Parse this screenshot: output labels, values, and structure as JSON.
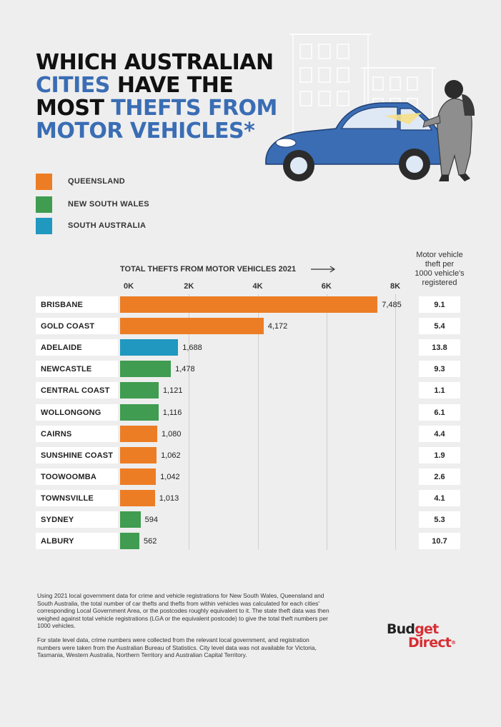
{
  "title": {
    "line1": "WHICH AUSTRALIAN",
    "line2_highlight": "CITIES",
    "line2_rest": " HAVE THE",
    "line3_dark": "MOST ",
    "line3_highlight": "THEFTS FROM",
    "line4": "MOTOR VEHICLES*"
  },
  "legend": [
    {
      "label": "QUEENSLAND",
      "color": "#ed7d24"
    },
    {
      "label": "NEW SOUTH WALES",
      "color": "#3f9c50"
    },
    {
      "label": "SOUTH AUSTRALIA",
      "color": "#2098c0"
    }
  ],
  "colors": {
    "QLD": "#ed7d24",
    "NSW": "#3f9c50",
    "SA": "#2098c0",
    "title_blue": "#3a6db4",
    "brand_red": "#d62e34"
  },
  "rate_header": [
    "Motor vehicle",
    "theft per",
    "1000 vehicle's",
    "registered"
  ],
  "chart_data": {
    "type": "bar",
    "orientation": "horizontal",
    "xlabel": "TOTAL THEFTS FROM MOTOR VEHICLES 2021",
    "ticks": [
      "0K",
      "2K",
      "4K",
      "6K",
      "8K"
    ],
    "tick_values": [
      0,
      2000,
      4000,
      6000,
      8000
    ],
    "xlim": [
      0,
      8000
    ],
    "grid": true,
    "categories": [
      "BRISBANE",
      "GOLD COAST",
      "ADELAIDE",
      "NEWCASTLE",
      "CENTRAL COAST",
      "WOLLONGONG",
      "CAIRNS",
      "SUNSHINE COAST",
      "TOOWOOMBA",
      "TOWNSVILLE",
      "SYDNEY",
      "ALBURY"
    ],
    "values": [
      7485,
      4172,
      1688,
      1478,
      1121,
      1116,
      1080,
      1062,
      1042,
      1013,
      594,
      562
    ],
    "value_labels": [
      "7,485",
      "4,172",
      "1,688",
      "1,478",
      "1,121",
      "1,116",
      "1,080",
      "1,062",
      "1,042",
      "1,013",
      "594",
      "562"
    ],
    "states": [
      "QLD",
      "QLD",
      "SA",
      "NSW",
      "NSW",
      "NSW",
      "QLD",
      "QLD",
      "QLD",
      "QLD",
      "NSW",
      "NSW"
    ],
    "rate_per_1000": [
      "9.1",
      "5.4",
      "13.8",
      "9.3",
      "1.1",
      "6.1",
      "4.4",
      "1.9",
      "2.6",
      "4.1",
      "5.3",
      "10.7"
    ]
  },
  "footnote": [
    "Using 2021 local government data for crime and vehicle registrations for New South Wales, Queensland and South Australia, the total number of car thefts and thefts from within vehicles was calculated for each cities' corresponding Local Government Area, or the postcodes roughly equivalent to it. The state theft data was then weighed against total vehicle registrations (LGA or the equivalent postcode) to give the total theft numbers per 1000 vehicles.",
    "For state level data, crime numbers were collected from the relevant local government, and registration numbers were taken from the Australian Bureau of Statistics. City level data was not available for Victoria, Tasmania, Western Australia, Northern Territory and Australian Capital Territory."
  ],
  "brand": {
    "word1": "Budget",
    "word2": "Direct",
    "reg": "®"
  }
}
